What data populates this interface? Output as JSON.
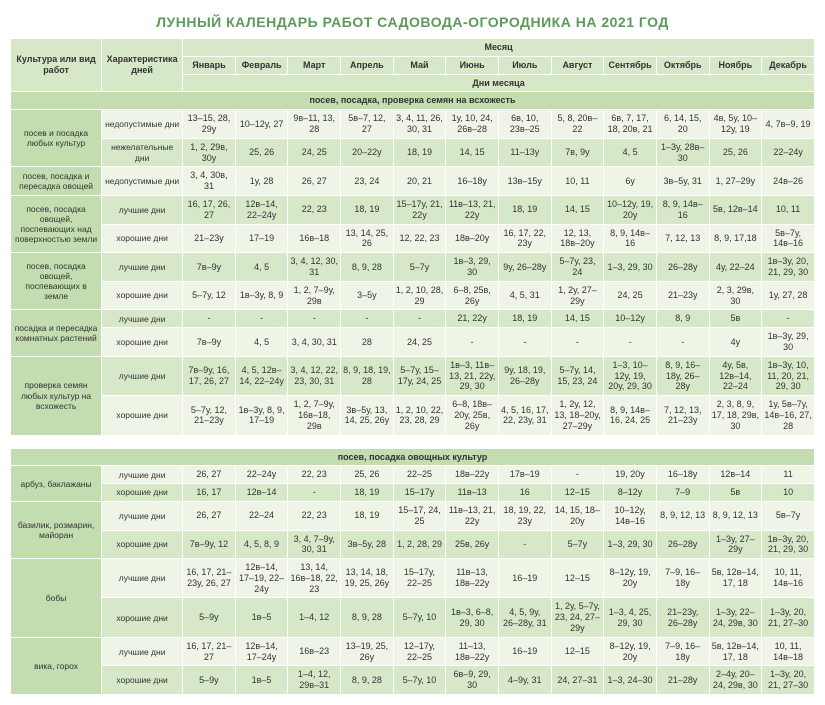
{
  "title": "ЛУННЫЙ КАЛЕНДАРЬ РАБОТ САДОВОДА-ОГОРОДНИКА НА 2021 ГОД",
  "headers": {
    "culture": "Культура или вид работ",
    "char": "Характеристика дней",
    "monthGroup": "Месяц",
    "daysGroup": "Дни месяца",
    "months": [
      "Январь",
      "Февраль",
      "Март",
      "Апрель",
      "Май",
      "Июнь",
      "Июль",
      "Август",
      "Сентябрь",
      "Октябрь",
      "Ноябрь",
      "Декабрь"
    ]
  },
  "section1": {
    "label": "посев, посадка, проверка семян на всхожесть",
    "groups": [
      {
        "culture": "посев и посадка любых культур",
        "rows": [
          {
            "char": "недопустимые дни",
            "cells": [
              "13–15, 28, 29у",
              "10–12у, 27",
              "9в–11, 13, 28",
              "5в–7, 12, 27",
              "3, 4, 11, 26, 30, 31",
              "1у, 10, 24, 26в–28",
              "6в, 10, 23в–25",
              "5, 8, 20в–22",
              "6в, 7, 17, 18, 20в, 21",
              "6, 14, 15, 20",
              "4в, 5у, 10–12у, 19",
              "4, 7в–9, 19"
            ]
          },
          {
            "char": "нежелательные дни",
            "cells": [
              "1, 2, 29в, 30у",
              "25, 26",
              "24, 25",
              "20–22у",
              "18, 19",
              "14, 15",
              "11–13у",
              "7в, 9у",
              "4, 5",
              "1–3у, 28в–30",
              "25, 26",
              "22–24у"
            ]
          }
        ]
      },
      {
        "culture": "посев, посадка и пересадка овощей",
        "rows": [
          {
            "char": "недопустимые дни",
            "cells": [
              "3, 4, 30в, 31",
              "1у, 28",
              "26, 27",
              "23, 24",
              "20, 21",
              "16–18у",
              "13в–15у",
              "10, 11",
              "6у",
              "3в–5у, 31",
              "1, 27–29у",
              "24в–26"
            ]
          }
        ]
      },
      {
        "culture": "посев, посадка овощей, поспевающих над поверхностью земли",
        "rows": [
          {
            "char": "лучшие дни",
            "cells": [
              "16, 17, 26, 27",
              "12в–14, 22–24у",
              "22, 23",
              "18, 19",
              "15–17у, 21, 22у",
              "11в–13, 21, 22у",
              "18, 19",
              "14, 15",
              "10–12у, 19, 20у",
              "8, 9, 14в–16",
              "5в, 12в–14",
              "10, 11"
            ]
          },
          {
            "char": "хорошие дни",
            "cells": [
              "21–23у",
              "17–19",
              "16в–18",
              "13, 14, 25, 26",
              "12, 22, 23",
              "18в–20у",
              "16, 17, 22, 23у",
              "12, 13, 18в–20у",
              "8, 9, 14в–16",
              "7, 12, 13",
              "8, 9, 17,18",
              "5в–7у, 14в–16"
            ]
          }
        ]
      },
      {
        "culture": "посев, посадка овощей, поспевающих в земле",
        "rows": [
          {
            "char": "лучшие дни",
            "cells": [
              "7в–9у",
              "4, 5",
              "3, 4, 12, 30, 31",
              "8, 9, 28",
              "5–7у",
              "1в–3, 29, 30",
              "9у, 26–28у",
              "5–7у, 23, 24",
              "1–3, 29, 30",
              "26–28у",
              "4у, 22–24",
              "1в–3у, 20, 21, 29, 30"
            ]
          },
          {
            "char": "хорошие дни",
            "cells": [
              "5–7у, 12",
              "1в–3у, 8, 9",
              "1, 2, 7–9у, 29в",
              "3–5у",
              "1, 2, 10, 28, 29",
              "6–8, 25в, 26у",
              "4, 5, 31",
              "1, 2у, 27–29у",
              "24, 25",
              "21–23у",
              "2, 3, 29в, 30",
              "1у, 27, 28"
            ]
          }
        ]
      },
      {
        "culture": "посадка и пересадка комнатных растений",
        "rows": [
          {
            "char": "лучшие дни",
            "cells": [
              "-",
              "-",
              "-",
              "-",
              "-",
              "21, 22у",
              "18, 19",
              "14, 15",
              "10–12у",
              "8, 9",
              "5в",
              "-"
            ]
          },
          {
            "char": "хорошие дни",
            "cells": [
              "7в–9у",
              "4, 5",
              "3, 4, 30, 31",
              "28",
              "24, 25",
              "-",
              "-",
              "-",
              "-",
              "-",
              "4у",
              "1в–3у, 29, 30"
            ]
          }
        ]
      },
      {
        "culture": "проверка семян любых культур на всхожесть",
        "rows": [
          {
            "char": "лучшие дни",
            "cells": [
              "7в–9у, 16, 17, 26, 27",
              "4, 5, 12в–14, 22–24у",
              "3, 4, 12, 22, 23, 30, 31",
              "8, 9, 18, 19, 28",
              "5–7у, 15–17у, 24, 25",
              "1в–3, 11в–13, 21, 22у, 29, 30",
              "9у, 18, 19, 26–28у",
              "5–7у, 14, 15, 23, 24",
              "1–3, 10–12у, 19, 20у, 29, 30",
              "8, 9, 16–18у, 26–28у",
              "4у, 5в, 12в–14, 22–24",
              "1в–3у, 10, 11, 20, 21, 29, 30"
            ]
          },
          {
            "char": "хорошие дни",
            "cells": [
              "5–7у, 12, 21–23у",
              "1в–3у, 8, 9, 17–19",
              "1, 2, 7–9у, 16в–18, 29в",
              "3в–5у, 13, 14, 25, 26у",
              "1, 2, 10, 22, 23, 28, 29",
              "6–8, 18в–20у, 25в, 26у",
              "4, 5, 16, 17, 22, 23у, 31",
              "1, 2у, 12, 13, 18–20у, 27–29у",
              "8, 9, 14в–16, 24, 25",
              "7, 12, 13, 21–23у",
              "2, 3, 8, 9, 17, 18, 29в, 30",
              "1у, 5в–7у, 14в–16, 27, 28"
            ]
          }
        ]
      }
    ]
  },
  "section2": {
    "label": "посев, посадка овощных культур",
    "groups": [
      {
        "culture": "арбуз, баклажаны",
        "rows": [
          {
            "char": "лучшие дни",
            "cells": [
              "26, 27",
              "22–24у",
              "22, 23",
              "25, 26",
              "22–25",
              "18в–22у",
              "17в–19",
              "-",
              "19, 20у",
              "16–18у",
              "12в–14",
              "11"
            ]
          },
          {
            "char": "хорошие дни",
            "cells": [
              "16, 17",
              "12в–14",
              "-",
              "18, 19",
              "15–17у",
              "11в–13",
              "16",
              "12–15",
              "8–12у",
              "7–9",
              "5в",
              "10"
            ]
          }
        ]
      },
      {
        "culture": "базилик, розмарин, майоран",
        "rows": [
          {
            "char": "лучшие дни",
            "cells": [
              "26, 27",
              "22–24",
              "22, 23",
              "18, 19",
              "15–17, 24, 25",
              "11в–13, 21, 22у",
              "18, 19, 22, 23у",
              "14, 15, 18–20у",
              "10–12у, 14в–16",
              "8, 9, 12, 13",
              "8, 9, 12, 13",
              "5в–7у"
            ]
          },
          {
            "char": "хорошие дни",
            "cells": [
              "7в–9у, 12",
              "4, 5, 8, 9",
              "3, 4, 7–9у, 30, 31",
              "3в–5у, 28",
              "1, 2, 28, 29",
              "25в, 26у",
              "-",
              "5–7у",
              "1–3, 29, 30",
              "26–28у",
              "1–3у, 27–29у",
              "1в–3у, 20, 21, 29, 30"
            ]
          }
        ]
      },
      {
        "culture": "бобы",
        "rows": [
          {
            "char": "лучшие дни",
            "cells": [
              "16, 17, 21–23у, 26, 27",
              "12в–14, 17–19, 22–24у",
              "13, 14, 16в–18, 22, 23",
              "13, 14, 18, 19, 25, 26у",
              "15–17у, 22–25",
              "11в–13, 18в–22у",
              "16–19",
              "12–15",
              "8–12у, 19, 20у",
              "7–9, 16–18у",
              "5в, 12в–14, 17, 18",
              "10, 11, 14в–16"
            ]
          },
          {
            "char": "хорошие дни",
            "cells": [
              "5–9у",
              "1в–5",
              "1–4, 12",
              "8, 9, 28",
              "5–7у, 10",
              "1в–3, 6–8, 29, 30",
              "4, 5, 9у, 26–28у, 31",
              "1, 2у, 5–7у, 23, 24, 27–29у",
              "1–3, 4, 25, 29, 30",
              "21–23у, 26–28у",
              "1–3у, 22–24, 29в, 30",
              "1–3у, 20, 21, 27–30"
            ]
          }
        ]
      },
      {
        "culture": "вика, горох",
        "rows": [
          {
            "char": "лучшие дни",
            "cells": [
              "16, 17, 21–27",
              "12в–14, 17–24у",
              "16в–23",
              "13–19, 25, 26у",
              "12–17у, 22–25",
              "11–13, 18в–22у",
              "16–19",
              "12–15",
              "8–12у, 19, 20у",
              "7–9, 16–18у",
              "5в, 12в–14, 17, 18",
              "10, 11, 14в–18"
            ]
          },
          {
            "char": "хорошие дни",
            "cells": [
              "5–9у",
              "1в–5",
              "1–4, 12, 29в–31",
              "8, 9, 28",
              "5–7у, 10",
              "6в–9, 29, 30",
              "4–9у, 31",
              "24, 27–31",
              "1–3, 24–30",
              "21–28у",
              "2–4у, 20–24, 29в, 30",
              "1–3у, 20, 21, 27–30"
            ]
          }
        ]
      }
    ]
  }
}
